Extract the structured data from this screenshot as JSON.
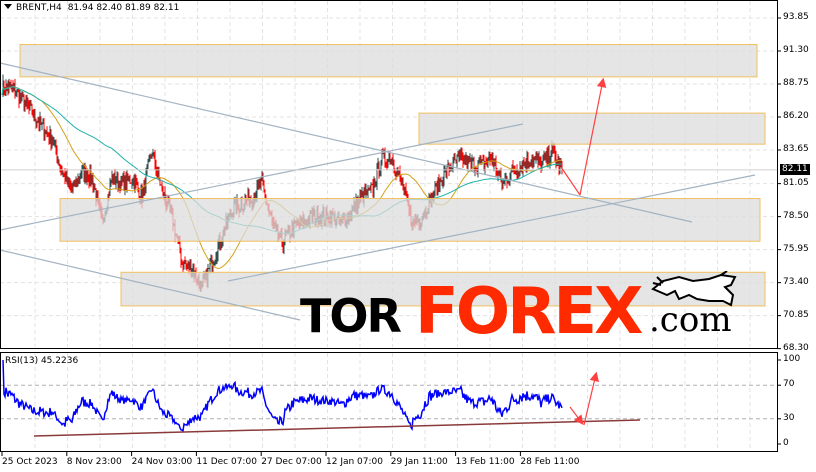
{
  "header": {
    "symbol": "BRENT,H4",
    "ohlc": "81.94 82.40 81.89 82.11"
  },
  "colors": {
    "up_candle": "#2f4f4f",
    "down_candle": "#ff0000",
    "ma_fast": "#d4a017",
    "ma_slow": "#20b2aa",
    "zones": "#f0c060",
    "zone_fill": "#dcdcdc",
    "trendlines": "#a3b3c2",
    "forecast_arrow": "#ff4040",
    "rsi_line": "#0000ff",
    "rsi_trendline": "#8b3a3a",
    "logo_red": "#ff2a00"
  },
  "chart_data": [
    {
      "type": "candlestick",
      "title": "BRENT,H4",
      "ylim": [
        68.3,
        95.0
      ],
      "y_ticks": [
        "93.85",
        "91.30",
        "88.75",
        "86.20",
        "83.65",
        "81.05",
        "78.50",
        "75.95",
        "73.40",
        "70.85",
        "68.30"
      ],
      "x_ticks": [
        "25 Oct 2023",
        "8 Nov 23:00",
        "24 Nov 03:00",
        "11 Dec 07:00",
        "27 Dec 07:00",
        "12 Jan 07:00",
        "29 Jan 11:00",
        "13 Feb 11:00",
        "28 Feb 11:00"
      ],
      "current_price": "82.11",
      "close_approx": [
        88.5,
        88.5,
        87.5,
        86.5,
        85.5,
        84.5,
        82,
        80.5,
        82,
        81.5,
        78,
        81.5,
        81,
        81.5,
        80,
        83.5,
        80.5,
        78.5,
        75,
        74.5,
        73,
        75,
        77,
        79,
        79.5,
        80,
        81,
        78,
        76.5,
        77.5,
        78,
        78.5,
        78.5,
        78.5,
        78,
        79,
        80,
        80.5,
        83,
        83,
        81,
        78,
        78.5,
        80,
        81.5,
        82.5,
        83,
        82.5,
        82.5,
        83,
        81,
        82,
        82.5,
        83,
        82.5,
        83.5,
        82.11
      ],
      "zones": [
        [
          91.8,
          89.3
        ],
        [
          86.5,
          84.1
        ],
        [
          79.9,
          76.6
        ],
        [
          74.2,
          71.6
        ]
      ],
      "grid": true
    },
    {
      "type": "line",
      "title": "RSI(13) 45.2236",
      "ylim": [
        0,
        100
      ],
      "y_ticks": [
        "100",
        "70",
        "30",
        "0"
      ],
      "levels": [
        70,
        30
      ],
      "last_value": 45.2236
    }
  ],
  "logo": {
    "part1": "TOR",
    "part2": "FOREX",
    "part3": ".com"
  }
}
